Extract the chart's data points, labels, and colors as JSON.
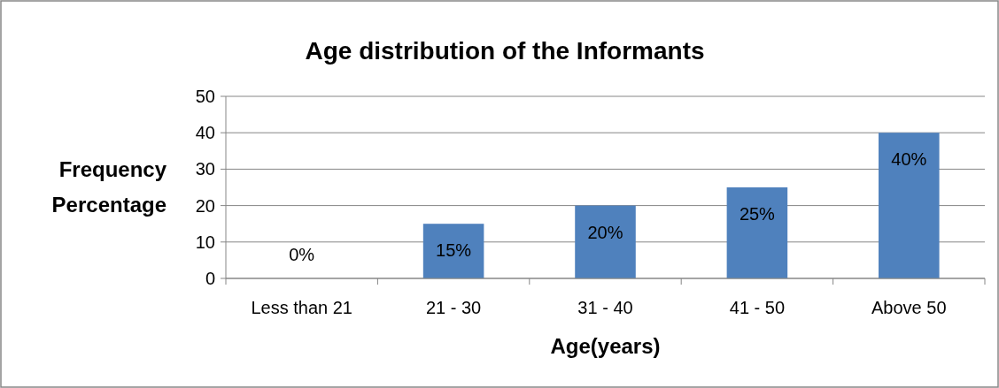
{
  "chart_data": {
    "type": "bar",
    "title": "Age distribution of the Informants",
    "xlabel": "Age(years)",
    "ylabel": "Frequency Percentage",
    "categories": [
      "Less than 21",
      "21 - 30",
      "31 - 40",
      "41 - 50",
      "Above 50"
    ],
    "values": [
      0,
      15,
      20,
      25,
      40
    ],
    "value_labels": [
      "0%",
      "15%",
      "20%",
      "25%",
      "40%"
    ],
    "color": "#4f81bd",
    "ylim": [
      0,
      50
    ],
    "yticks": [
      0,
      10,
      20,
      30,
      40,
      50
    ],
    "grid": "y"
  }
}
